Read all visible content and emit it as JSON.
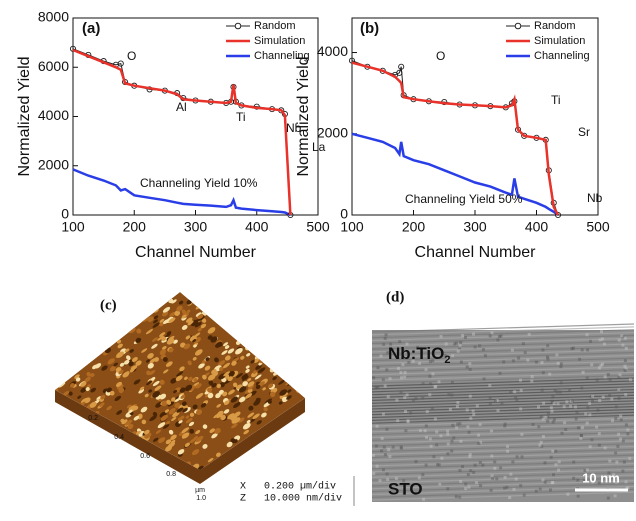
{
  "chart_data": [
    {
      "type": "line",
      "title": "(a)",
      "x_label": "Channel Number",
      "y_label": "Normalized Yield",
      "x": [
        100,
        125,
        150,
        170,
        178,
        185,
        200,
        225,
        250,
        270,
        280,
        300,
        325,
        350,
        358,
        362,
        366,
        375,
        400,
        425,
        440,
        446,
        455
      ],
      "series": [
        {
          "name": "Random",
          "color": "#222222",
          "marker": "circle",
          "values": [
            6750,
            6500,
            6250,
            6100,
            6150,
            5400,
            5250,
            5100,
            5050,
            4950,
            4750,
            4650,
            4600,
            4550,
            4600,
            5200,
            4600,
            4450,
            4400,
            4300,
            4250,
            4100,
            0
          ]
        },
        {
          "name": "Simulation",
          "color": "#e8322a",
          "values": [
            6700,
            6450,
            6200,
            6000,
            5900,
            5350,
            5250,
            5150,
            5050,
            4900,
            4700,
            4650,
            4600,
            4550,
            4600,
            5300,
            4550,
            4450,
            4350,
            4300,
            4250,
            4050,
            0
          ]
        },
        {
          "name": "Channeling",
          "color": "#2a3ee8",
          "values": [
            1850,
            1600,
            1400,
            1200,
            1000,
            1050,
            800,
            700,
            600,
            500,
            450,
            420,
            380,
            330,
            400,
            600,
            300,
            260,
            200,
            150,
            120,
            100,
            0
          ]
        }
      ],
      "xlim": [
        100,
        500
      ],
      "ylim": [
        0,
        8000
      ],
      "xticks": [
        100,
        200,
        300,
        400,
        500
      ],
      "yticks": [
        0,
        2000,
        4000,
        6000,
        8000
      ],
      "annotations": [
        "O",
        "Al",
        "Ti",
        "Nb",
        "La",
        "Channeling Yield 10%"
      ]
    },
    {
      "type": "line",
      "title": "(b)",
      "x_label": "Channel Number",
      "y_label": "Normalized Yield",
      "x": [
        100,
        125,
        150,
        170,
        177,
        180,
        184,
        200,
        225,
        250,
        275,
        300,
        325,
        350,
        360,
        364,
        370,
        380,
        400,
        415,
        420,
        428,
        435
      ],
      "series": [
        {
          "name": "Random",
          "color": "#222222",
          "marker": "circle",
          "values": [
            3800,
            3650,
            3550,
            3450,
            3500,
            3650,
            2950,
            2850,
            2800,
            2780,
            2720,
            2700,
            2680,
            2650,
            2750,
            2800,
            2100,
            1950,
            1900,
            1850,
            1100,
            300,
            0
          ]
        },
        {
          "name": "Simulation",
          "color": "#e8322a",
          "values": [
            3750,
            3650,
            3550,
            3400,
            3300,
            3250,
            2900,
            2850,
            2800,
            2750,
            2720,
            2700,
            2680,
            2650,
            2700,
            2850,
            2100,
            1950,
            1900,
            1850,
            1000,
            200,
            0
          ]
        },
        {
          "name": "Channeling",
          "color": "#2a3ee8",
          "values": [
            2000,
            1900,
            1800,
            1650,
            1500,
            1800,
            1450,
            1350,
            1250,
            1100,
            950,
            800,
            700,
            550,
            500,
            900,
            450,
            400,
            300,
            200,
            150,
            80,
            0
          ]
        }
      ],
      "xlim": [
        100,
        500
      ],
      "ylim": [
        0,
        4850
      ],
      "xticks": [
        100,
        200,
        300,
        400,
        500
      ],
      "yticks": [
        0,
        2000,
        4000
      ],
      "annotations": [
        "O",
        "Ti",
        "Sr",
        "Nb",
        "Channeling Yield 50%"
      ]
    }
  ],
  "panels": [
    {
      "label": "(c)",
      "axis_ticks": [
        "0.2",
        "0.4",
        "0.6",
        "0.8",
        "1.0"
      ],
      "axis_unit": "µm",
      "scale": [
        [
          "X",
          "0.200 µm/div"
        ],
        [
          "Z",
          "10.000 nm/div"
        ]
      ]
    },
    {
      "label": "(d)",
      "top_label": "Nb:TiO",
      "top_label_sub": "2",
      "bottom_label": "STO",
      "scale_bar": "10 nm"
    }
  ]
}
